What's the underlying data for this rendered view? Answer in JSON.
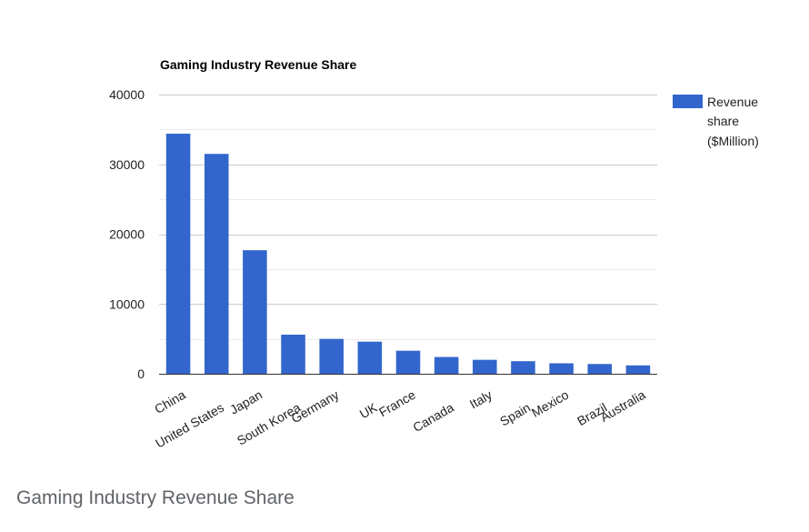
{
  "chart_data": {
    "type": "bar",
    "title": "Gaming Industry Revenue Share",
    "categories": [
      "China",
      "United States",
      "Japan",
      "South Korea",
      "Germany",
      "UK",
      "France",
      "Canada",
      "Italy",
      "Spain",
      "Mexico",
      "Brazil",
      "Australia"
    ],
    "series": [
      {
        "name": "Revenue share ($Million)",
        "legend_lines": [
          "Revenue",
          "share",
          "($Million)"
        ],
        "values": [
          34400,
          31500,
          17700,
          5600,
          5000,
          4600,
          3300,
          2400,
          2000,
          1800,
          1500,
          1400,
          1200
        ],
        "color": "#3366cc"
      }
    ],
    "ylim": [
      0,
      40000
    ],
    "yticks": [
      "0",
      "10000",
      "20000",
      "30000",
      "40000"
    ],
    "xlabel": "",
    "ylabel": "",
    "grid": true,
    "legend_position": "right"
  },
  "caption": "Gaming Industry Revenue Share"
}
